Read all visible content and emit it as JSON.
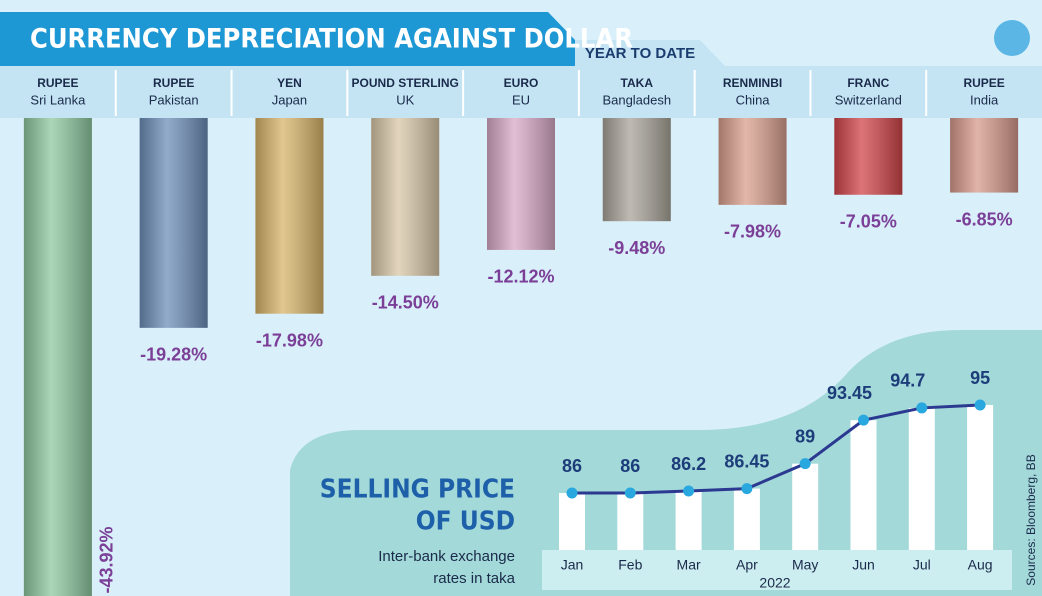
{
  "chart_data": [
    {
      "type": "bar",
      "title": "CURRENCY DEPRECIATION AGAINST DOLLAR",
      "subtitle": "YEAR TO DATE",
      "categories": [
        "RUPEE",
        "RUPEE",
        "YEN",
        "POUND STERLING",
        "EURO",
        "TAKA",
        "RENMINBI",
        "FRANC",
        "RUPEE"
      ],
      "countries": [
        "Sri Lanka",
        "Pakistan",
        "Japan",
        "UK",
        "EU",
        "Bangladesh",
        "China",
        "Switzerland",
        "India"
      ],
      "values": [
        -43.92,
        -19.28,
        -17.98,
        -14.5,
        -12.12,
        -9.48,
        -7.98,
        -7.05,
        -6.85
      ],
      "value_labels": [
        "-43.92%",
        "-19.28%",
        "-17.98%",
        "-14.50%",
        "-12.12%",
        "-9.48%",
        "-7.98%",
        "-7.05%",
        "-6.85%"
      ],
      "colors": [
        "#8fc9a0",
        "#6d8fb8",
        "#d8b56a",
        "#d9c7a8",
        "#d9a9c6",
        "#a9a49a",
        "#d9a08e",
        "#d0454a",
        "#d79a8c"
      ]
    },
    {
      "type": "line",
      "title_lines": [
        "SELLING PRICE",
        "OF USD"
      ],
      "subtitle_lines": [
        "Inter-bank exchange",
        "rates in taka"
      ],
      "categories": [
        "Jan",
        "Feb",
        "Mar",
        "Apr",
        "May",
        "Jun",
        "Jul",
        "Aug"
      ],
      "xlabel": "2022",
      "values": [
        86,
        86,
        86.2,
        86.45,
        89,
        93.45,
        94.7,
        95
      ],
      "color": "#2b3990",
      "source": "Sources: Bloomberg, BB"
    }
  ]
}
